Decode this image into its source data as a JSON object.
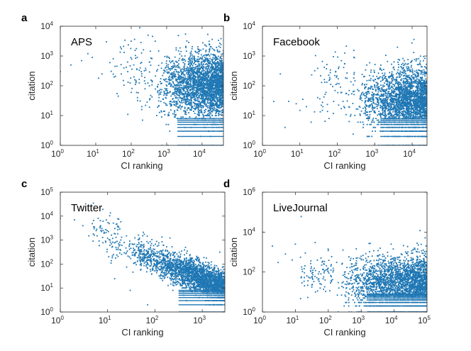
{
  "figure": {
    "caption": "CI ranking vs citation scatter plots"
  },
  "chart_data": [
    {
      "panel_label": "a",
      "title": "APS",
      "type": "scatter",
      "xlabel": "CI ranking",
      "ylabel": "citation",
      "xscale": "log",
      "yscale": "log",
      "xlim": [
        1,
        40000
      ],
      "ylim": [
        1,
        10000
      ],
      "x_tick_exponents": [
        0,
        1,
        2,
        3,
        4
      ],
      "y_tick_exponents": [
        0,
        1,
        2,
        3,
        4
      ],
      "dense_cloud": {
        "x_range": [
          400,
          40000
        ],
        "y_center": 100,
        "y_spread_decades": 0.55
      },
      "sample_points": [
        [
          1,
          300
        ],
        [
          2,
          500
        ],
        [
          4,
          700
        ],
        [
          6,
          1200
        ],
        [
          8,
          900
        ],
        [
          12,
          180
        ],
        [
          15,
          250
        ],
        [
          20,
          3000
        ],
        [
          25,
          600
        ],
        [
          35,
          450
        ],
        [
          50,
          2000
        ],
        [
          60,
          150
        ],
        [
          80,
          300
        ],
        [
          100,
          60
        ],
        [
          120,
          200
        ],
        [
          150,
          40
        ],
        [
          180,
          400
        ],
        [
          200,
          20
        ],
        [
          250,
          120
        ],
        [
          300,
          5000
        ]
      ],
      "color": "#1f77b4"
    },
    {
      "panel_label": "b",
      "title": "Facebook",
      "type": "scatter",
      "xlabel": "CI ranking",
      "ylabel": "citation",
      "xscale": "log",
      "yscale": "log",
      "xlim": [
        1,
        25000
      ],
      "ylim": [
        1,
        10000
      ],
      "x_tick_exponents": [
        0,
        1,
        2,
        3,
        4
      ],
      "y_tick_exponents": [
        0,
        1,
        2,
        3,
        4
      ],
      "dense_cloud": {
        "x_range": [
          300,
          25000
        ],
        "y_center": 30,
        "y_spread_decades": 0.55
      },
      "sample_points": [
        [
          1,
          40
        ],
        [
          2,
          30
        ],
        [
          3,
          250
        ],
        [
          4,
          4
        ],
        [
          5,
          30
        ],
        [
          8,
          25
        ],
        [
          10,
          15
        ],
        [
          12,
          35
        ],
        [
          15,
          20
        ],
        [
          20,
          6
        ],
        [
          30,
          40
        ],
        [
          40,
          15
        ],
        [
          50,
          60
        ],
        [
          60,
          8
        ],
        [
          80,
          30
        ],
        [
          100,
          120
        ],
        [
          150,
          20
        ],
        [
          200,
          50
        ]
      ],
      "color": "#1f77b4"
    },
    {
      "panel_label": "c",
      "title": "Twitter",
      "type": "scatter",
      "xlabel": "CI ranking",
      "ylabel": "citation",
      "xscale": "log",
      "yscale": "log",
      "xlim": [
        1,
        3000
      ],
      "ylim": [
        1,
        100000
      ],
      "x_tick_exponents": [
        0,
        1,
        2,
        3
      ],
      "y_tick_exponents": [
        0,
        1,
        2,
        3,
        4,
        5
      ],
      "dense_cloud": {
        "x_range": [
          20,
          3000
        ],
        "trend": "power-law decreasing",
        "y_at_xmin": 500,
        "y_at_xmax": 10
      },
      "sample_points": [
        [
          1,
          8000
        ],
        [
          2,
          7000
        ],
        [
          3,
          4000
        ],
        [
          4,
          1500
        ],
        [
          5,
          1800
        ],
        [
          6,
          1500
        ],
        [
          8,
          2500
        ],
        [
          9,
          900
        ],
        [
          10,
          1200
        ],
        [
          12,
          700
        ],
        [
          15,
          500
        ],
        [
          20,
          600
        ],
        [
          25,
          300
        ],
        [
          30,
          8
        ],
        [
          50,
          200
        ],
        [
          70,
          2
        ]
      ],
      "color": "#1f77b4"
    },
    {
      "panel_label": "d",
      "title": "LiveJournal",
      "type": "scatter",
      "xlabel": "CI ranking",
      "ylabel": "citation",
      "xscale": "log",
      "yscale": "log",
      "xlim": [
        1,
        100000
      ],
      "ylim": [
        1,
        1000000
      ],
      "x_tick_exponents": [
        0,
        1,
        2,
        3,
        4,
        5
      ],
      "y_tick_exponents": [
        0,
        2,
        4,
        6
      ],
      "dense_cloud": {
        "x_range": [
          150,
          100000
        ],
        "y_center": 25,
        "y_spread_decades": 0.7
      },
      "sample_points": [
        [
          1,
          10000
        ],
        [
          2,
          2000
        ],
        [
          3,
          300
        ],
        [
          5,
          800
        ],
        [
          8,
          400
        ],
        [
          10,
          2500
        ],
        [
          15,
          60000
        ],
        [
          20,
          900
        ],
        [
          30,
          150
        ],
        [
          40,
          3000
        ],
        [
          50,
          80
        ],
        [
          60,
          500
        ],
        [
          80,
          40
        ],
        [
          100,
          1200
        ],
        [
          120,
          200
        ]
      ],
      "color": "#1f77b4"
    }
  ]
}
